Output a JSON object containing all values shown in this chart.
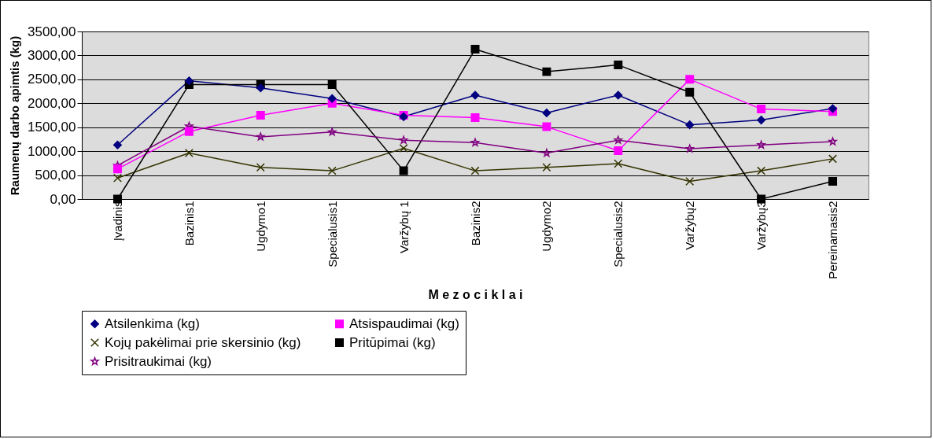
{
  "chart_data": {
    "type": "line",
    "xlabel": "M e z o c i k l a i",
    "ylabel": "Raumenų darbo apimtis (kg)",
    "categories": [
      "Įvadinis",
      "Bazinis1",
      "Ugdymo1",
      "Specialusis1",
      "Varžybų 1",
      "Bazinis2",
      "Ugdymo2",
      "Specialusis2",
      "Varžybų2",
      "Varžybų3",
      "Pereinamasis2"
    ],
    "series": [
      {
        "name": "Atsilenkima (kg)",
        "color": "#000080",
        "marker": "diamond",
        "values": [
          1130,
          2470,
          2320,
          2100,
          1720,
          2170,
          1800,
          2170,
          1550,
          1650,
          1890
        ]
      },
      {
        "name": "Atsispaudimai (kg)",
        "color": "#ff00ff",
        "marker": "square",
        "values": [
          630,
          1410,
          1750,
          2000,
          1750,
          1700,
          1510,
          1010,
          2500,
          1880,
          1830
        ]
      },
      {
        "name": "Kojų pakėlimai prie skersinio (kg)",
        "color": "#333300",
        "marker": "cross",
        "values": [
          440,
          960,
          660,
          590,
          1060,
          590,
          660,
          740,
          370,
          590,
          840
        ]
      },
      {
        "name": "Pritūpimai (kg)",
        "color": "#000000",
        "marker": "square",
        "values": [
          0,
          2390,
          2390,
          2390,
          590,
          3130,
          2660,
          2800,
          2230,
          0,
          370
        ]
      },
      {
        "name": "Prisitraukimai (kg)",
        "color": "#800080",
        "marker": "star",
        "values": [
          700,
          1520,
          1300,
          1400,
          1230,
          1180,
          960,
          1230,
          1050,
          1130,
          1200
        ]
      }
    ],
    "ylim": [
      0,
      3500
    ],
    "yticks": [
      {
        "value": 0,
        "label": "0,00"
      },
      {
        "value": 500,
        "label": "500,00"
      },
      {
        "value": 1000,
        "label": "1000,00"
      },
      {
        "value": 1500,
        "label": "1500,00"
      },
      {
        "value": 2000,
        "label": "2000,00"
      },
      {
        "value": 2500,
        "label": "2500,00"
      },
      {
        "value": 3000,
        "label": "3000,00"
      },
      {
        "value": 3500,
        "label": "3500,00"
      }
    ],
    "grid": "y",
    "legend": "bottom",
    "line_style": "solid"
  }
}
